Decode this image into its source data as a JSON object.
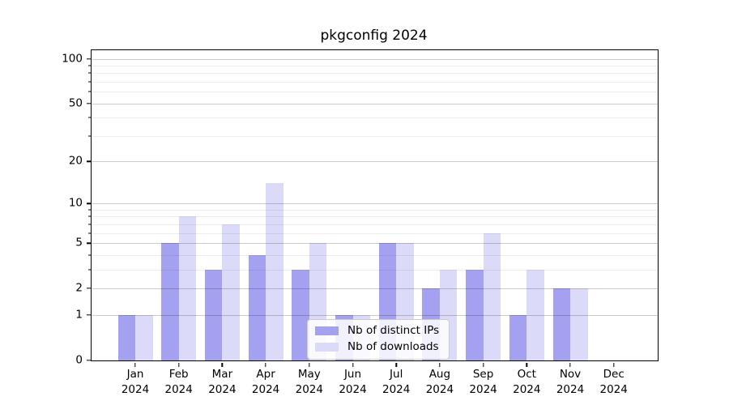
{
  "chart_data": {
    "type": "bar",
    "title": "pkgconfig 2024",
    "categories": [
      "Jan",
      "Feb",
      "Mar",
      "Apr",
      "May",
      "Jun",
      "Jul",
      "Aug",
      "Sep",
      "Oct",
      "Nov",
      "Dec"
    ],
    "x_year_label": "2024",
    "series": [
      {
        "name": "Nb of distinct IPs",
        "color": "#a3a1f0",
        "values": [
          1,
          5,
          3,
          4,
          3,
          1,
          5,
          2,
          3,
          1,
          2,
          0
        ]
      },
      {
        "name": "Nb of downloads",
        "color": "#dbdaf8",
        "values": [
          1,
          8,
          7,
          14,
          5,
          1,
          5,
          3,
          6,
          3,
          2,
          0
        ]
      }
    ],
    "xlabel": "",
    "ylabel": "",
    "yscale": "log1p",
    "ylim": [
      0,
      115
    ],
    "y_major_ticks": [
      0,
      1,
      2,
      5,
      10,
      20,
      50,
      100
    ],
    "y_minor_gridlines": [
      3,
      4,
      6,
      7,
      8,
      9,
      30,
      40,
      60,
      70,
      80,
      90
    ],
    "grid": "on",
    "grid_above_bars": true,
    "legend": {
      "position": "lower-center-inside",
      "entries": [
        "Nb of distinct IPs",
        "Nb of downloads"
      ]
    }
  },
  "colors": {
    "background": "#ffffff",
    "spine": "#000000",
    "distinct_ips": "#a3a1f0",
    "downloads": "#dbdaf8",
    "legend_border": "#cbcbcb"
  }
}
